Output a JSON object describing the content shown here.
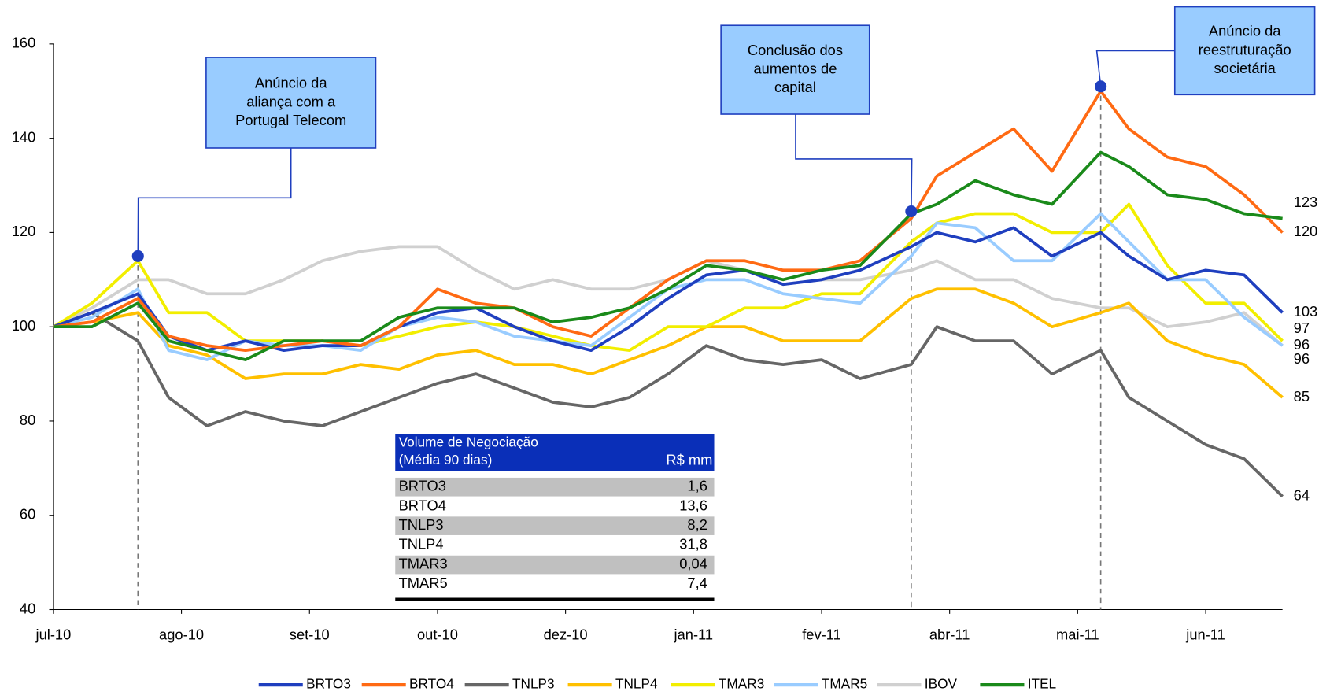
{
  "chart_data": {
    "type": "line",
    "x": [
      0,
      3,
      6.6,
      9,
      12,
      15,
      18,
      21,
      24,
      27,
      30,
      33,
      36,
      39,
      42,
      45,
      48,
      51,
      54,
      57,
      60,
      63,
      67,
      69,
      72,
      75,
      78,
      81.8,
      84,
      87,
      90,
      93,
      96
    ],
    "xlim": [
      0,
      96
    ],
    "xticks": [
      {
        "value": 0,
        "label": "jul-10"
      },
      {
        "value": 10,
        "label": "ago-10"
      },
      {
        "value": 20,
        "label": "set-10"
      },
      {
        "value": 30,
        "label": "out-10"
      },
      {
        "value": 40,
        "label": "dez-10"
      },
      {
        "value": 50,
        "label": "jan-11"
      },
      {
        "value": 60,
        "label": "fev-11"
      },
      {
        "value": 70,
        "label": "abr-11"
      },
      {
        "value": 80,
        "label": "mai-11"
      },
      {
        "value": 90,
        "label": "jun-11"
      }
    ],
    "ylim": [
      40,
      160
    ],
    "yticks": [
      40,
      60,
      80,
      100,
      120,
      140,
      160
    ],
    "grid": false,
    "legend": "bottom",
    "series": [
      {
        "name": "BRTO3",
        "color": "#1f3fbf",
        "values": [
          100,
          103,
          107,
          98,
          95,
          97,
          95,
          96,
          96,
          100,
          103,
          104,
          100,
          97,
          95,
          100,
          106,
          111,
          112,
          109,
          110,
          112,
          117,
          120,
          118,
          121,
          115,
          120,
          115,
          110,
          112,
          111,
          103
        ]
      },
      {
        "name": "BRTO4",
        "color": "#ff6a13",
        "values": [
          100,
          101,
          106,
          98,
          96,
          95,
          96,
          97,
          96,
          100,
          108,
          105,
          104,
          100,
          98,
          104,
          110,
          114,
          114,
          112,
          112,
          114,
          123,
          132,
          137,
          142,
          133,
          150,
          142,
          136,
          134,
          128,
          120
        ]
      },
      {
        "name": "TNLP3",
        "color": "#666666",
        "values": [
          100,
          103,
          97,
          85,
          79,
          82,
          80,
          79,
          82,
          85,
          88,
          90,
          87,
          84,
          83,
          85,
          90,
          96,
          93,
          92,
          93,
          89,
          92,
          100,
          97,
          97,
          90,
          95,
          85,
          80,
          75,
          72,
          64
        ]
      },
      {
        "name": "TNLP4",
        "color": "#ffc000",
        "values": [
          100,
          101,
          103,
          96,
          94,
          89,
          90,
          90,
          92,
          91,
          94,
          95,
          92,
          92,
          90,
          93,
          96,
          100,
          100,
          97,
          97,
          97,
          106,
          108,
          108,
          105,
          100,
          103,
          105,
          97,
          94,
          92,
          85
        ]
      },
      {
        "name": "TMAR3",
        "color": "#f2ee00",
        "values": [
          100,
          105,
          114,
          103,
          103,
          97,
          97,
          97,
          96,
          98,
          100,
          101,
          100,
          98,
          96,
          95,
          100,
          100,
          104,
          104,
          107,
          107,
          118,
          122,
          124,
          124,
          120,
          120,
          126,
          113,
          105,
          105,
          97
        ]
      },
      {
        "name": "TMAR5",
        "color": "#99ccff",
        "values": [
          100,
          102,
          108,
          95,
          93,
          97,
          96,
          96,
          95,
          100,
          102,
          101,
          98,
          97,
          96,
          102,
          108,
          110,
          110,
          107,
          106,
          105,
          115,
          122,
          121,
          114,
          114,
          124,
          118,
          110,
          110,
          102,
          96
        ]
      },
      {
        "name": "IBOV",
        "color": "#d0d0d0",
        "values": [
          100,
          104,
          110,
          110,
          107,
          107,
          110,
          114,
          116,
          117,
          117,
          112,
          108,
          110,
          108,
          108,
          110,
          114,
          112,
          109,
          110,
          110,
          112,
          114,
          110,
          110,
          106,
          104,
          104,
          100,
          101,
          103,
          96
        ]
      },
      {
        "name": "ITEL",
        "color": "#1a8a1a",
        "values": [
          100,
          100,
          105,
          97,
          95,
          93,
          97,
          97,
          97,
          102,
          104,
          104,
          104,
          101,
          102,
          104,
          108,
          113,
          112,
          110,
          112,
          113,
          124,
          126,
          131,
          128,
          126,
          137,
          134,
          128,
          127,
          124,
          123
        ]
      }
    ],
    "annotations": [
      {
        "lines": [
          "Anúncio da",
          "aliança com a",
          "Portugal Telecom"
        ],
        "x": 6.6,
        "y": 115
      },
      {
        "lines": [
          "Conclusão dos",
          "aumentos de",
          "capital"
        ],
        "x": 67,
        "y": 124.5
      },
      {
        "lines": [
          "Anúncio da",
          "reestruturação",
          "societária"
        ],
        "x": 81.8,
        "y": 151
      }
    ],
    "table": {
      "title": [
        "Volume de Negociação",
        "(Média 90 dias)"
      ],
      "unit": "R$ mm",
      "rows": [
        [
          "BRTO3",
          "1,6"
        ],
        [
          "BRTO4",
          "13,6"
        ],
        [
          "TNLP3",
          "8,2"
        ],
        [
          "TNLP4",
          "31,8"
        ],
        [
          "TMAR3",
          "0,04"
        ],
        [
          "TMAR5",
          "7,4"
        ]
      ]
    }
  }
}
